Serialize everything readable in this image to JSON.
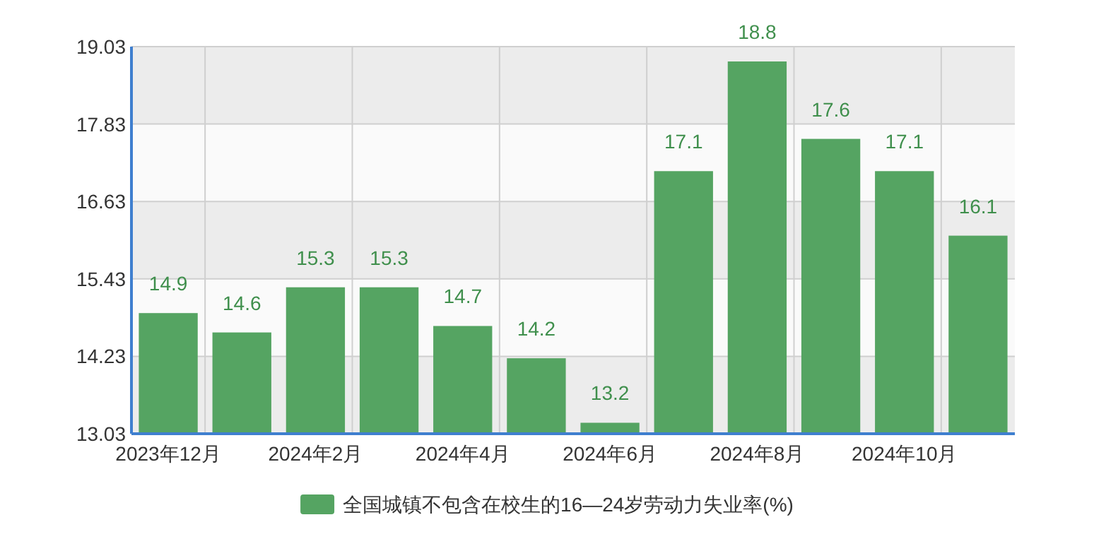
{
  "chart_data": {
    "type": "bar",
    "categories": [
      "2023年12月",
      null,
      "2024年2月",
      null,
      "2024年4月",
      null,
      "2024年6月",
      null,
      "2024年8月",
      null,
      "2024年10月",
      null
    ],
    "series": [
      {
        "name": "全国城镇不包含在校生的16—24岁劳动力失业率(%)",
        "color": "#55a462",
        "values": [
          14.9,
          14.6,
          15.3,
          15.3,
          14.7,
          14.2,
          13.2,
          17.1,
          18.8,
          17.6,
          17.1,
          16.1
        ]
      }
    ],
    "ylim": [
      13.03,
      19.03
    ],
    "yticks": [
      13.03,
      14.23,
      15.43,
      16.63,
      17.83,
      19.03
    ],
    "grid": true,
    "legend": "bottom",
    "data_labels": true
  }
}
